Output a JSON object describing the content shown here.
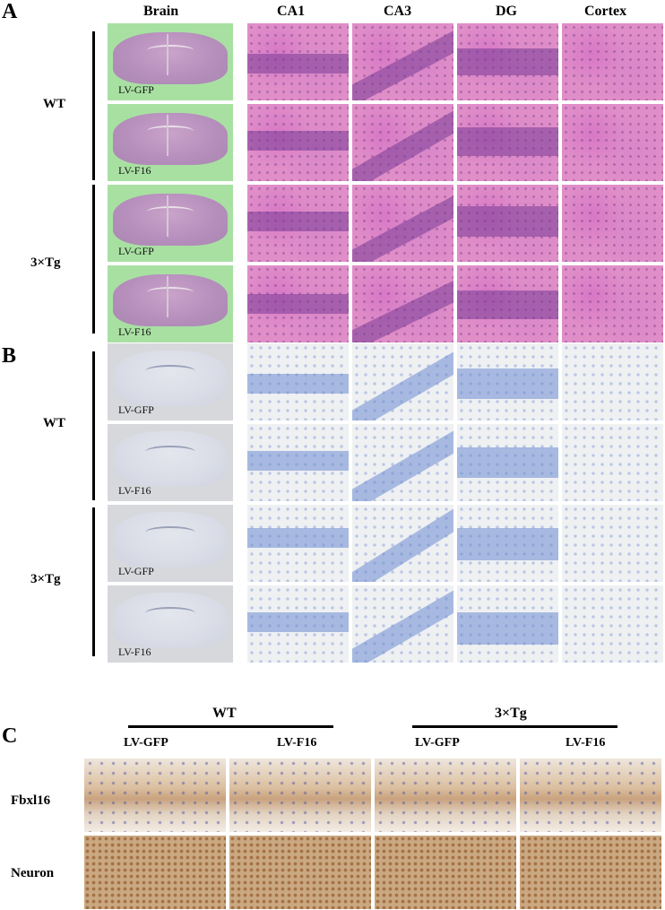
{
  "panels": {
    "a": "A",
    "b": "B",
    "c": "C"
  },
  "columns": {
    "brain": "Brain",
    "ca1": "CA1",
    "ca3": "CA3",
    "dg": "DG",
    "cortex": "Cortex"
  },
  "groups": {
    "wt": "WT",
    "tg": "3×Tg"
  },
  "treatments": {
    "gfp": "LV-GFP",
    "f16": "LV-F16"
  },
  "panel_c": {
    "group_wt": "WT",
    "group_tg": "3×Tg",
    "sub_gfp": "LV-GFP",
    "sub_f16": "LV-F16",
    "row_fbxl16": "Fbxl16",
    "row_neuron": "Neuron"
  }
}
